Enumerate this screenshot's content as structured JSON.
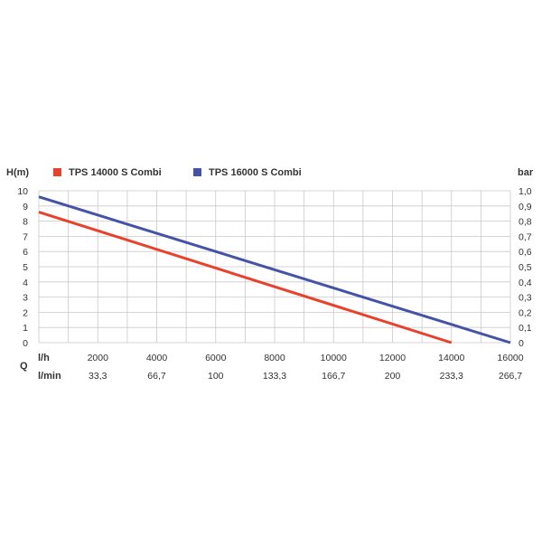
{
  "chart_data": {
    "type": "line",
    "left_unit": "H(m)",
    "right_unit": "bar",
    "left_ticks": [
      "0",
      "1",
      "2",
      "3",
      "4",
      "5",
      "6",
      "7",
      "8",
      "9",
      "10"
    ],
    "right_ticks": [
      "0",
      "0,1",
      "0,2",
      "0,3",
      "0,4",
      "0,5",
      "0,6",
      "0,7",
      "0,8",
      "0,9",
      "1,0"
    ],
    "ylim": [
      0,
      10
    ],
    "xlim": [
      0,
      16000
    ],
    "x_rows": {
      "q_symbol": "Q",
      "row1_unit": "l/h",
      "row1_ticks": [
        "2000",
        "4000",
        "6000",
        "8000",
        "10000",
        "12000",
        "14000",
        "16000"
      ],
      "row2_unit": "l/min",
      "row2_ticks": [
        "33,3",
        "66,7",
        "100",
        "133,3",
        "166,7",
        "200",
        "233,3",
        "266,7"
      ]
    },
    "grid": true,
    "legend_position": "top",
    "series": [
      {
        "name": "TPS 14000 S Combi",
        "color": "#e8412c",
        "x": [
          0,
          14000
        ],
        "y": [
          8.6,
          0
        ]
      },
      {
        "name": "TPS 16000 S Combi",
        "color": "#4453a7",
        "x": [
          0,
          16000
        ],
        "y": [
          9.6,
          0
        ]
      }
    ]
  }
}
